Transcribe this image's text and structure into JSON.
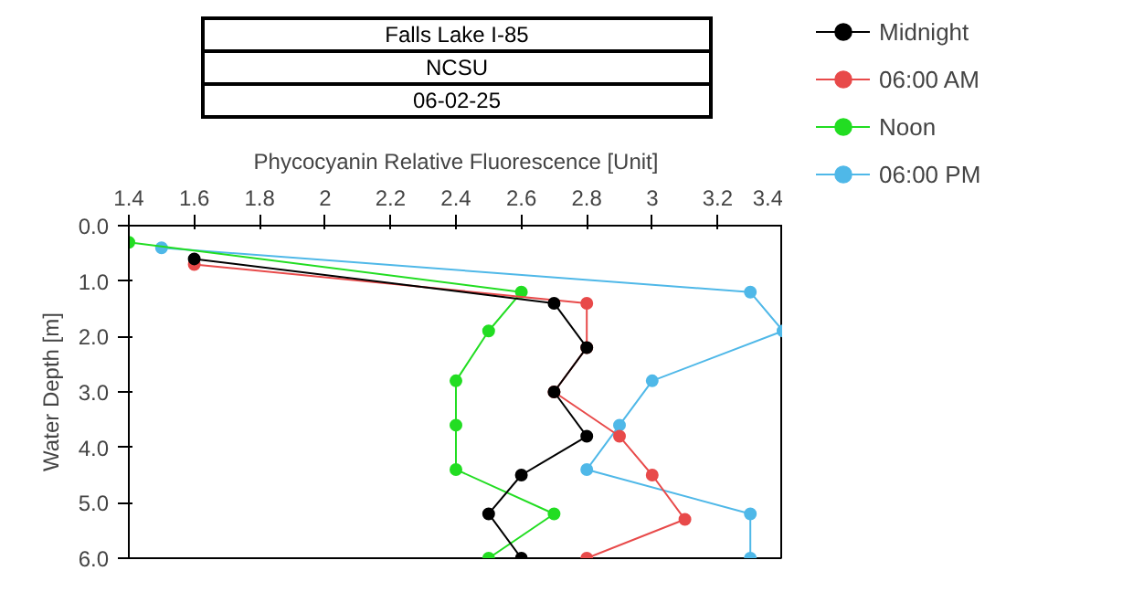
{
  "chart_data": {
    "type": "line",
    "title": "Falls Lake I-85",
    "subtitle": "NCSU",
    "annotations": [
      "06-02-25"
    ],
    "xlabel": "Phycocyanin Relative Fluorescence [Unit]",
    "ylabel": "Water Depth [m]",
    "xlim": [
      1.4,
      3.4
    ],
    "xticks": [
      1.4,
      1.6,
      1.8,
      2,
      2.2,
      2.4,
      2.6,
      2.8,
      3,
      3.2,
      3.4
    ],
    "ylim": [
      6.0,
      0.0
    ],
    "yticks": [
      {
        "value": 0,
        "label": "0.0"
      },
      {
        "value": 1,
        "label": "1.0"
      },
      {
        "value": 2,
        "label": "2.0"
      },
      {
        "value": 3,
        "label": "3.0"
      },
      {
        "value": 4,
        "label": "4.0"
      },
      {
        "value": 5,
        "label": "5.0"
      },
      {
        "value": 6,
        "label": "6.0"
      }
    ],
    "grid": false,
    "legend": "top right",
    "marker": "circle",
    "line_style": "solid",
    "series": [
      {
        "name": "Midnight",
        "color": "#000000",
        "x": [
          1.6,
          2.7,
          2.8,
          2.7,
          2.8,
          2.6,
          2.5,
          2.6
        ],
        "values": [
          0.6,
          1.4,
          2.2,
          3.0,
          3.8,
          4.5,
          5.2,
          6.0
        ]
      },
      {
        "name": "06:00 AM",
        "color": "#e84a4a",
        "x": [
          1.6,
          2.8,
          2.8,
          2.7,
          2.9,
          3.0,
          3.1,
          2.8
        ],
        "values": [
          0.7,
          1.4,
          2.2,
          3.0,
          3.8,
          4.5,
          5.3,
          6.0
        ]
      },
      {
        "name": "Noon",
        "color": "#22dd22",
        "x": [
          1.4,
          2.6,
          2.5,
          2.4,
          2.4,
          2.4,
          2.7,
          2.5
        ],
        "values": [
          0.3,
          1.2,
          1.9,
          2.8,
          3.6,
          4.4,
          5.2,
          6.0
        ]
      },
      {
        "name": "06:00 PM",
        "color": "#4fb8e8",
        "x": [
          1.5,
          3.3,
          3.4,
          3.0,
          2.9,
          2.8,
          3.3,
          3.3
        ],
        "values": [
          0.4,
          1.2,
          1.9,
          2.8,
          3.6,
          4.4,
          5.2,
          6.0
        ]
      }
    ]
  }
}
